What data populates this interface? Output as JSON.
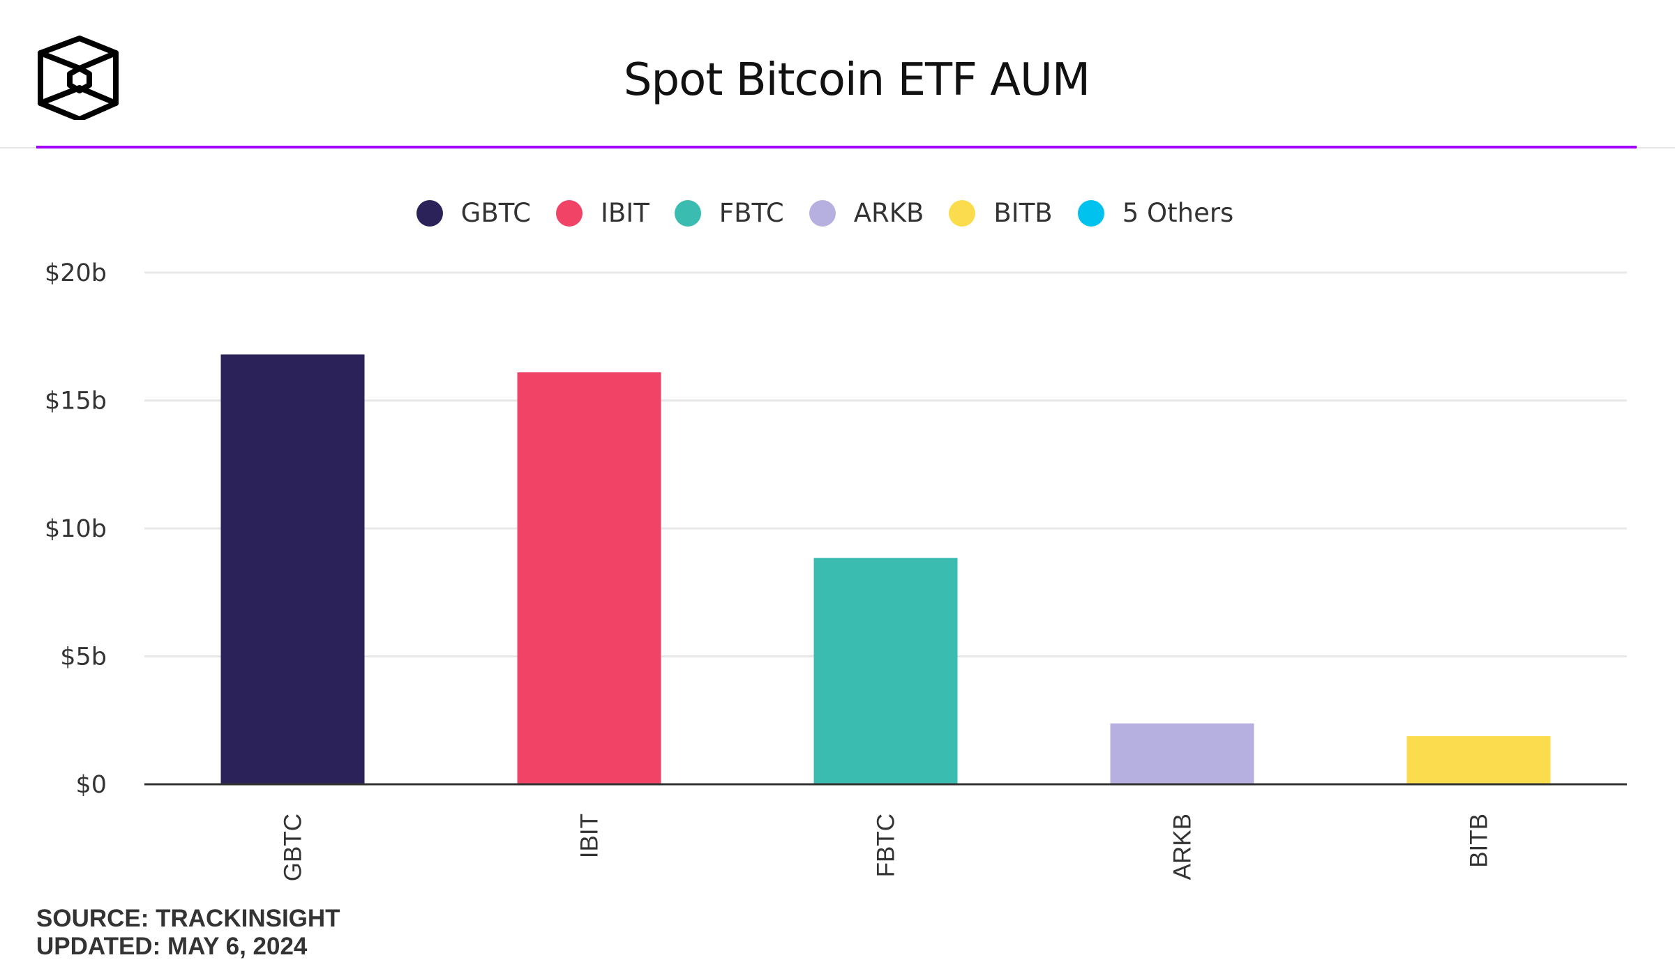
{
  "header": {
    "title": "Spot Bitcoin ETF AUM"
  },
  "footer": {
    "source": "SOURCE: TRACKINSIGHT",
    "updated": "UPDATED: MAY 6, 2024"
  },
  "colors": {
    "accent": "#a100ff"
  },
  "chart_data": {
    "type": "bar",
    "title": "Spot Bitcoin ETF AUM",
    "categories": [
      "GBTC",
      "IBIT",
      "FBTC",
      "ARKB",
      "BITB"
    ],
    "values": [
      16.8,
      16.1,
      8.85,
      2.38,
      1.88
    ],
    "unit": "$ billions",
    "ylim": [
      0,
      20
    ],
    "yticks": [
      0,
      5,
      10,
      15,
      20
    ],
    "ytick_labels": [
      "$0",
      "$5b",
      "$10b",
      "$15b",
      "$20b"
    ],
    "xlabel": "",
    "ylabel": "",
    "grid": true,
    "legend_position": "top-center",
    "legend": [
      {
        "label": "GBTC",
        "color": "#2b225a"
      },
      {
        "label": "IBIT",
        "color": "#f04366"
      },
      {
        "label": "FBTC",
        "color": "#3abcb1"
      },
      {
        "label": "ARKB",
        "color": "#b6b0e0"
      },
      {
        "label": "BITB",
        "color": "#fbdc4c"
      },
      {
        "label": "5 Others",
        "color": "#00c2ef"
      }
    ]
  }
}
